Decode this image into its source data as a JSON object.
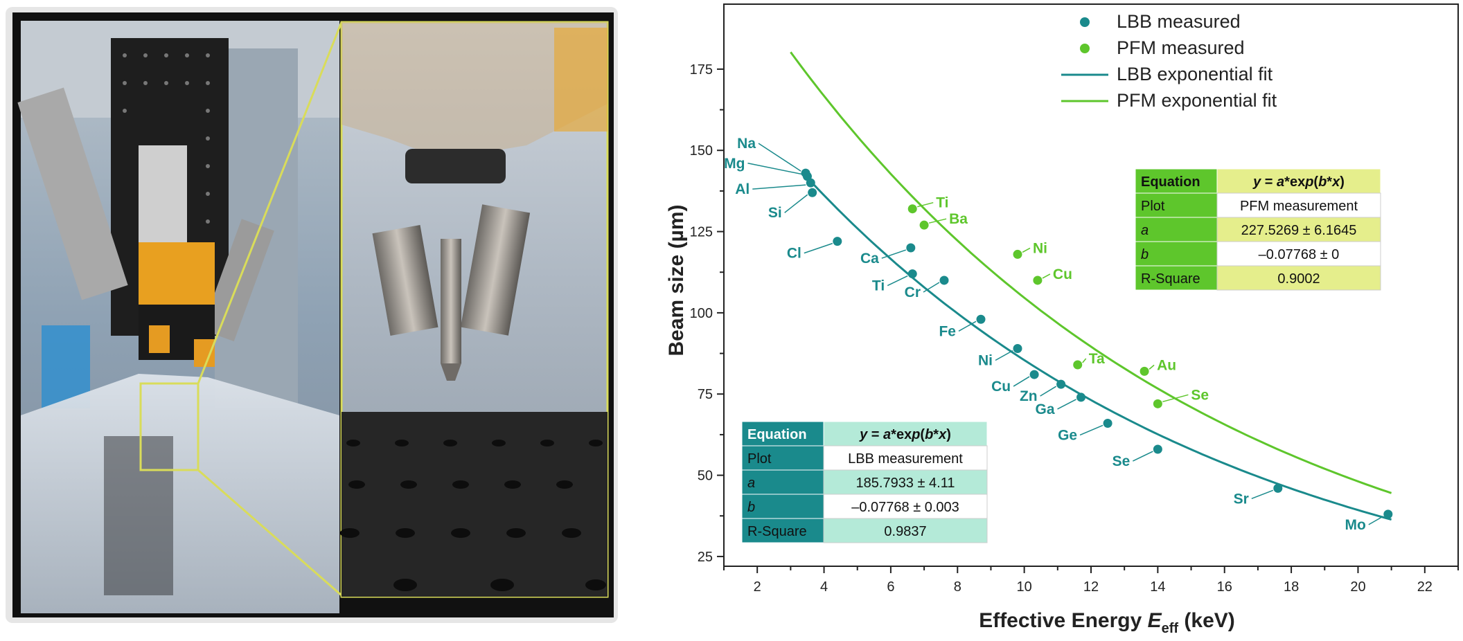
{
  "photo": {
    "description_icon": "photo-of-experimental-setup",
    "frame_color": "#d9dc5a"
  },
  "chart_data": {
    "type": "scatter",
    "xlabel": "Effective Energy ",
    "xlabel_symbol": "E",
    "xlabel_sub": "eff",
    "xlabel_unit": " (keV)",
    "ylabel": "Beam size (µm)",
    "xlim": [
      1,
      23
    ],
    "ylim": [
      22,
      195
    ],
    "xticks": [
      2,
      4,
      6,
      8,
      10,
      12,
      14,
      16,
      18,
      20,
      22
    ],
    "yticks": [
      25,
      50,
      75,
      100,
      125,
      150,
      175
    ],
    "grid": false,
    "legend_position": "top-right",
    "colors": {
      "lbb": "#1a8a8c",
      "pfm": "#5ec62c"
    },
    "series": [
      {
        "name": "LBB measured",
        "marker": "point",
        "color": "#1a8a8c",
        "points": [
          {
            "label": "Na",
            "x": 3.45,
            "y": 143
          },
          {
            "label": "Mg",
            "x": 3.5,
            "y": 142
          },
          {
            "label": "Al",
            "x": 3.6,
            "y": 140
          },
          {
            "label": "Si",
            "x": 3.65,
            "y": 137
          },
          {
            "label": "Cl",
            "x": 4.4,
            "y": 122
          },
          {
            "label": "Ca",
            "x": 6.6,
            "y": 120
          },
          {
            "label": "Ti",
            "x": 6.65,
            "y": 112
          },
          {
            "label": "Cr",
            "x": 7.6,
            "y": 110
          },
          {
            "label": "Fe",
            "x": 8.7,
            "y": 98
          },
          {
            "label": "Ni",
            "x": 9.8,
            "y": 89
          },
          {
            "label": "Cu",
            "x": 10.3,
            "y": 81
          },
          {
            "label": "Zn",
            "x": 11.1,
            "y": 78
          },
          {
            "label": "Ga",
            "x": 11.7,
            "y": 74
          },
          {
            "label": "Ge",
            "x": 12.5,
            "y": 66
          },
          {
            "label": "Se",
            "x": 14.0,
            "y": 58
          },
          {
            "label": "Sr",
            "x": 17.6,
            "y": 46
          },
          {
            "label": "Mo",
            "x": 20.9,
            "y": 38
          }
        ]
      },
      {
        "name": "PFM measured",
        "marker": "point",
        "color": "#5ec62c",
        "points": [
          {
            "label": "Ti",
            "x": 6.65,
            "y": 132
          },
          {
            "label": "Ba",
            "x": 7.0,
            "y": 127
          },
          {
            "label": "Ni",
            "x": 9.8,
            "y": 118
          },
          {
            "label": "Cu",
            "x": 10.4,
            "y": 110
          },
          {
            "label": "Ta",
            "x": 11.6,
            "y": 84
          },
          {
            "label": "Au",
            "x": 13.6,
            "y": 82
          },
          {
            "label": "Se",
            "x": 14.0,
            "y": 72
          }
        ]
      },
      {
        "name": "LBB exponential fit",
        "marker": "line",
        "color": "#1a8a8c",
        "fit": {
          "a": 185.7933,
          "b": -0.07768,
          "x_start": 3.55,
          "x_end": 21.0
        }
      },
      {
        "name": "PFM exponential fit",
        "marker": "line",
        "color": "#5ec62c",
        "fit": {
          "a": 227.5269,
          "b": -0.07768,
          "x_start": 3.0,
          "x_end": 21.0
        }
      }
    ],
    "tables": [
      {
        "id": "pfm",
        "header_color": "#5ec62c",
        "row_tint": "#e5ee8c",
        "header": [
          "Equation",
          "y = a*exp(b*x)"
        ],
        "rows": [
          [
            "Plot",
            "PFM measurement"
          ],
          [
            "a",
            "227.5269 ± 6.1645"
          ],
          [
            "b",
            "–0.07768 ± 0"
          ],
          [
            "R-Square",
            "0.9002"
          ]
        ]
      },
      {
        "id": "lbb",
        "header_color": "#1a8a8c",
        "row_tint": "#b4ead8",
        "header": [
          "Equation",
          "y = a*exp(b*x)"
        ],
        "rows": [
          [
            "Plot",
            "LBB measurement"
          ],
          [
            "a",
            "185.7933 ± 4.11"
          ],
          [
            "b",
            "–0.07768 ± 0.003"
          ],
          [
            "R-Square",
            "0.9837"
          ]
        ]
      }
    ]
  }
}
